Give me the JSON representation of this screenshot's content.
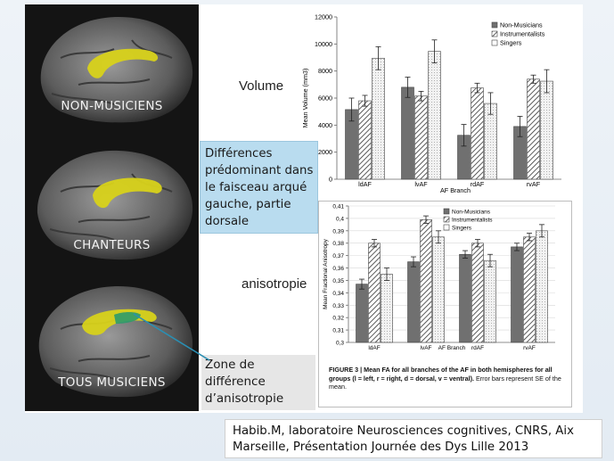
{
  "brains": [
    {
      "caption": "NON-MUSICIENS"
    },
    {
      "caption": "CHANTEURS"
    },
    {
      "caption": "TOUS MUSICIENS"
    }
  ],
  "labels": {
    "volume": "Volume",
    "anisotropie": "anisotropie"
  },
  "callouts": {
    "dorsal": "Différences prédominant dans le faisceau arqué gauche, partie dorsale",
    "zone": "Zone de différence d’anisotropie"
  },
  "source": "Habib.M, laboratoire Neurosciences cognitives, CNRS, Aix Marseille, Présentation Journée des Dys Lille 2013",
  "figure_caption": {
    "bold": "FIGURE 3 | Mean FA for all branches of the AF in both hemispheres for all groups (l = left, r = right, d = dorsal, v = ventral).",
    "normal": " Error bars represent SE of the mean."
  },
  "colors": {
    "non_musicians": "#6f6f6f",
    "instrumentalists": "hatch",
    "singers": "#ececec",
    "callout": "#b9dcef",
    "tract": "#d8d21a",
    "tract_difference": "#2e9b6a"
  },
  "chart_data": [
    {
      "type": "bar",
      "title": "",
      "xlabel": "AF Branch",
      "ylabel": "Mean Volume (mm3)",
      "ylim": [
        0,
        12000
      ],
      "yticks": [
        "0",
        "2000",
        "4000",
        "6000",
        "8000",
        "10000",
        "12000"
      ],
      "categories": [
        "ldAF",
        "lvAF",
        "rdAF",
        "rvAF"
      ],
      "legend": "top-right",
      "series": [
        {
          "name": "Non-Musicians",
          "values": [
            5150,
            6800,
            3250,
            3900
          ],
          "err": [
            850,
            750,
            800,
            750
          ]
        },
        {
          "name": "Instrumentalists",
          "values": [
            5800,
            6150,
            6750,
            7400
          ],
          "err": [
            400,
            350,
            350,
            300
          ]
        },
        {
          "name": "Singers",
          "values": [
            8950,
            9450,
            5600,
            7250
          ],
          "err": [
            850,
            850,
            800,
            850
          ]
        }
      ]
    },
    {
      "type": "bar",
      "title": "",
      "xlabel": "AF Branch",
      "ylabel": "Mean Fractional Anisotropy",
      "ylim": [
        0.3,
        0.41
      ],
      "yticks": [
        "0,3",
        "0,31",
        "0,32",
        "0,33",
        "0,34",
        "0,35",
        "0,36",
        "0,37",
        "0,38",
        "0,39",
        "0,4",
        "0,41"
      ],
      "categories": [
        "ldAF",
        "lvAF",
        "rdAF",
        "rvAF"
      ],
      "legend": "top-left",
      "series": [
        {
          "name": "Non-Musicians",
          "values": [
            0.347,
            0.365,
            0.371,
            0.377
          ],
          "err": [
            0.004,
            0.004,
            0.003,
            0.003
          ]
        },
        {
          "name": "Instrumentalists",
          "values": [
            0.38,
            0.399,
            0.38,
            0.385
          ],
          "err": [
            0.003,
            0.003,
            0.003,
            0.003
          ]
        },
        {
          "name": "Singers",
          "values": [
            0.355,
            0.385,
            0.366,
            0.39
          ],
          "err": [
            0.005,
            0.005,
            0.005,
            0.005
          ]
        }
      ]
    }
  ]
}
